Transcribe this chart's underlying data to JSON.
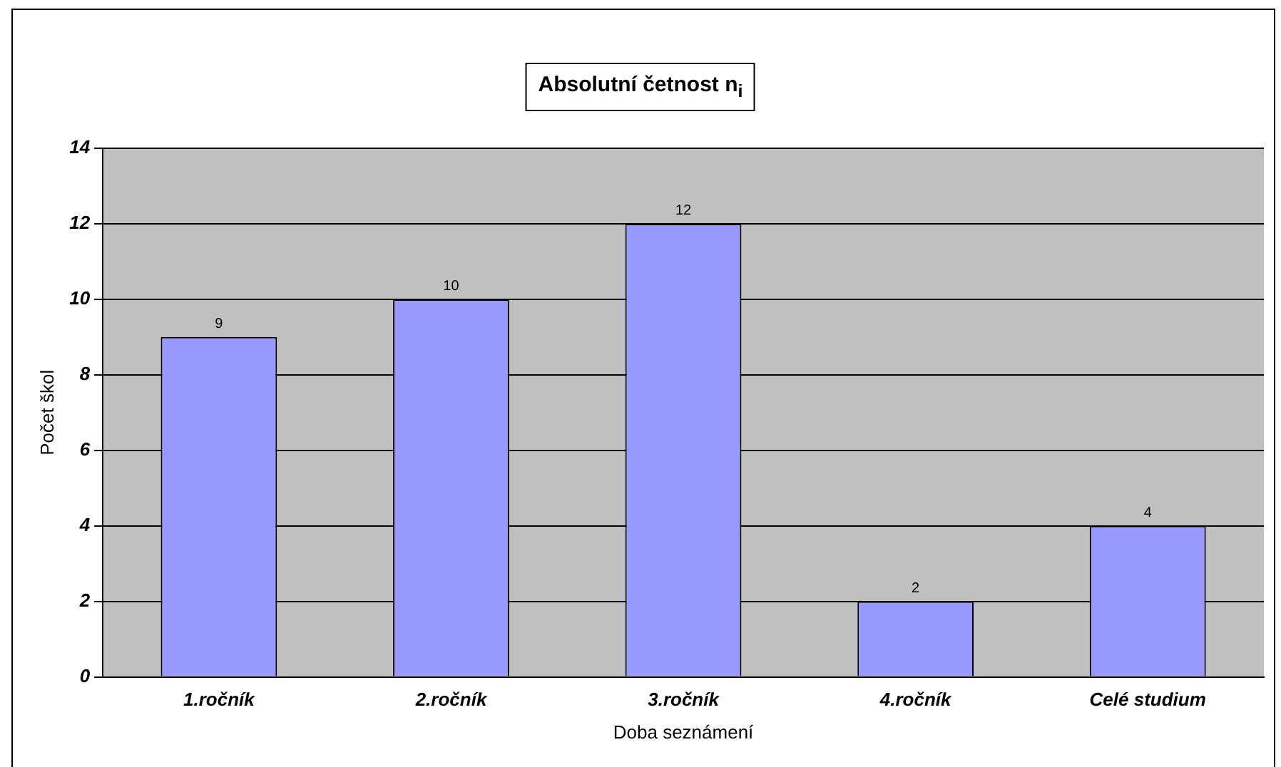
{
  "chart_data": {
    "type": "bar",
    "title": "Absolutní četnost n$_{i}$",
    "xlabel": "Doba seznámení",
    "ylabel": "Počet škol",
    "categories": [
      "1.ročník",
      "2.ročník",
      "3.ročník",
      "4.ročník",
      "Celé studium"
    ],
    "values": [
      9,
      10,
      12,
      2,
      4
    ],
    "color": "#9999ff",
    "ylim": [
      0,
      14
    ],
    "yticks": [
      0,
      2,
      4,
      6,
      8,
      10,
      12,
      14
    ],
    "grid": "y",
    "data_labels": true,
    "legend": false
  }
}
